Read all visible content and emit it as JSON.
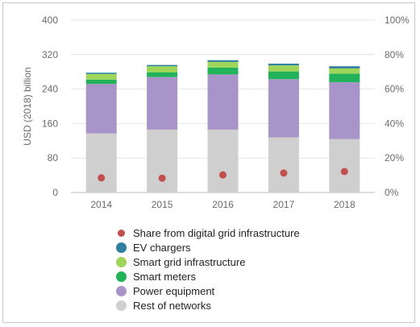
{
  "chart_data": {
    "type": "bar",
    "stacked": true,
    "categories": [
      "2014",
      "2015",
      "2016",
      "2017",
      "2018"
    ],
    "ylabel": "USD (2018) billion",
    "y_ticks": [
      "0",
      "80",
      "160",
      "240",
      "320",
      "400"
    ],
    "ylim": [
      0,
      400
    ],
    "y2_ticks": [
      "0%",
      "20%",
      "40%",
      "60%",
      "80%",
      "100%"
    ],
    "y2lim": [
      0,
      100
    ],
    "grid": true,
    "legend_position": "bottom",
    "series": [
      {
        "name": "Rest of networks",
        "color": "#cfcfcf",
        "values": [
          137,
          146,
          146,
          128,
          124
        ]
      },
      {
        "name": "Power equipment",
        "color": "#a994c9",
        "values": [
          115,
          122,
          128,
          135,
          132
        ]
      },
      {
        "name": "Smart meters",
        "color": "#22b35a",
        "values": [
          10,
          11,
          16,
          18,
          20
        ]
      },
      {
        "name": "Smart grid infrastructure",
        "color": "#9fd65a",
        "values": [
          13,
          14,
          13,
          14,
          12
        ]
      },
      {
        "name": "EV chargers",
        "color": "#2f7f9e",
        "values": [
          3,
          3,
          4,
          4,
          5
        ]
      }
    ],
    "share_series": {
      "name": "Share from digital grid infrastructure",
      "color": "#c0504d",
      "axis": "right",
      "values": [
        8.5,
        8.3,
        10.2,
        11.3,
        12.2
      ]
    },
    "legend_order": [
      "Share from digital grid infrastructure",
      "EV chargers",
      "Smart grid infrastructure",
      "Smart meters",
      "Power equipment",
      "Rest of networks"
    ]
  }
}
